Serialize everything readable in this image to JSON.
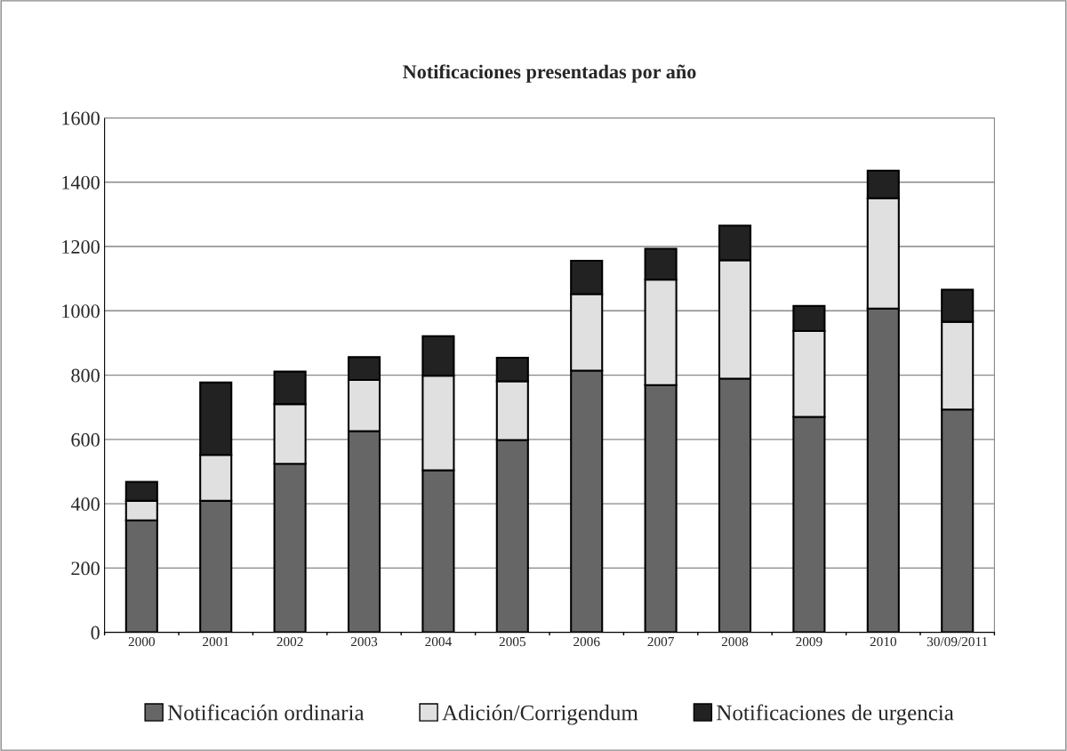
{
  "chart_data": {
    "type": "bar",
    "title": "Notificaciones presentadas por año",
    "stacked": true,
    "categories": [
      "2000",
      "2001",
      "2002",
      "2003",
      "2004",
      "2005",
      "2006",
      "2007",
      "2008",
      "2009",
      "2010",
      "30/09/2011"
    ],
    "series": [
      {
        "name": "Notificación ordinaria",
        "color": "#666666",
        "values": [
          348,
          409,
          524,
          626,
          504,
          598,
          814,
          769,
          789,
          670,
          1007,
          693
        ]
      },
      {
        "name": "Adición/Corrigendum",
        "color": "#e0e0e0",
        "values": [
          61,
          143,
          186,
          159,
          294,
          183,
          238,
          328,
          368,
          267,
          343,
          273
        ]
      },
      {
        "name": "Notificaciones de urgencia",
        "color": "#222222",
        "values": [
          59,
          225,
          101,
          71,
          123,
          73,
          104,
          96,
          108,
          78,
          86,
          100
        ]
      }
    ],
    "ylim": [
      0,
      1600
    ],
    "yticks": [
      0,
      200,
      400,
      600,
      800,
      1000,
      1200,
      1400,
      1600
    ],
    "grid": "y",
    "legend": "bottom"
  }
}
